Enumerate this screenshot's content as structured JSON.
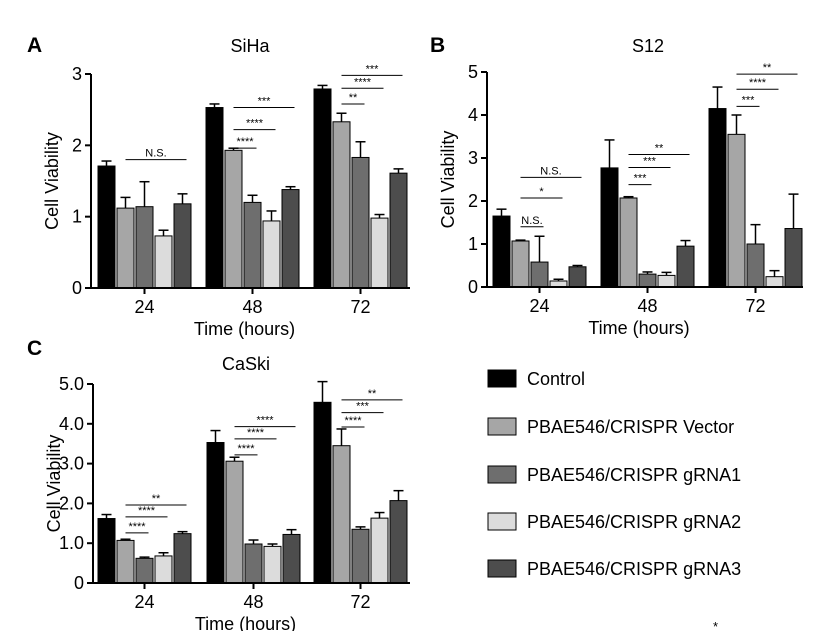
{
  "colors": {
    "series": [
      "#000000",
      "#a6a6a6",
      "#6e6e6e",
      "#dcdcdc",
      "#4d4d4d"
    ],
    "outline": "#000000"
  },
  "legend": {
    "entries": [
      "Control",
      "PBAE546/CRISPR Vector",
      "PBAE546/CRISPR gRNA1",
      "PBAE546/CRISPR gRNA2",
      "PBAE546/CRISPR gRNA3"
    ]
  },
  "footnote": "*",
  "chart_data": [
    {
      "panel_label": "A",
      "type": "bar",
      "title": "SiHa",
      "xlabel": "Time (hours)",
      "ylabel": "Cell Viability",
      "categories": [
        "24",
        "48",
        "72"
      ],
      "ylim": [
        0,
        3
      ],
      "yticks": [
        0,
        1,
        2,
        3
      ],
      "ytick_labels": [
        "0",
        "1",
        "2",
        "3"
      ],
      "series": [
        {
          "name": "Control",
          "values": [
            1.71,
            2.53,
            2.79
          ],
          "errors": [
            0.07,
            0.05,
            0.05
          ]
        },
        {
          "name": "PBAE546/CRISPR Vector",
          "values": [
            1.12,
            1.93,
            2.33
          ],
          "errors": [
            0.15,
            0.03,
            0.12
          ]
        },
        {
          "name": "PBAE546/CRISPR gRNA1",
          "values": [
            1.14,
            1.2,
            1.83
          ],
          "errors": [
            0.35,
            0.1,
            0.22
          ]
        },
        {
          "name": "PBAE546/CRISPR gRNA2",
          "values": [
            0.73,
            0.94,
            0.98
          ],
          "errors": [
            0.08,
            0.14,
            0.05
          ]
        },
        {
          "name": "PBAE546/CRISPR gRNA3",
          "values": [
            1.18,
            1.38,
            1.61
          ],
          "errors": [
            0.14,
            0.04,
            0.06
          ]
        }
      ],
      "annotations": [
        {
          "text": "N.S.",
          "category": "24",
          "series_from": 1,
          "series_to": 4,
          "y": 1.8
        },
        {
          "text": "****",
          "category": "48",
          "series_from": 1,
          "series_to": 2,
          "y": 1.96
        },
        {
          "text": "****",
          "category": "48",
          "series_from": 1,
          "series_to": 3,
          "y": 2.22
        },
        {
          "text": "***",
          "category": "48",
          "series_from": 1,
          "series_to": 4,
          "y": 2.53
        },
        {
          "text": "**",
          "category": "72",
          "series_from": 1,
          "series_to": 2,
          "y": 2.58
        },
        {
          "text": "****",
          "category": "72",
          "series_from": 1,
          "series_to": 3,
          "y": 2.8
        },
        {
          "text": "***",
          "category": "72",
          "series_from": 1,
          "series_to": 4,
          "y": 2.98
        }
      ]
    },
    {
      "panel_label": "B",
      "type": "bar",
      "title": "S12",
      "xlabel": "Time (hours)",
      "ylabel": "Cell Viability",
      "categories": [
        "24",
        "48",
        "72"
      ],
      "ylim": [
        0,
        5
      ],
      "yticks": [
        0,
        1,
        2,
        3,
        4,
        5
      ],
      "ytick_labels": [
        "0",
        "1",
        "2",
        "3",
        "4",
        "5"
      ],
      "series": [
        {
          "name": "Control",
          "values": [
            1.65,
            2.77,
            4.15
          ],
          "errors": [
            0.16,
            0.65,
            0.5
          ]
        },
        {
          "name": "PBAE546/CRISPR Vector",
          "values": [
            1.07,
            2.07,
            3.55
          ],
          "errors": [
            0.02,
            0.03,
            0.45
          ]
        },
        {
          "name": "PBAE546/CRISPR gRNA1",
          "values": [
            0.58,
            0.3,
            1.0
          ],
          "errors": [
            0.6,
            0.05,
            0.45
          ]
        },
        {
          "name": "PBAE546/CRISPR gRNA2",
          "values": [
            0.14,
            0.27,
            0.24
          ],
          "errors": [
            0.04,
            0.07,
            0.14
          ]
        },
        {
          "name": "PBAE546/CRISPR gRNA3",
          "values": [
            0.47,
            0.95,
            1.36
          ],
          "errors": [
            0.03,
            0.13,
            0.8
          ]
        }
      ],
      "annotations": [
        {
          "text": "N.S.",
          "category": "24",
          "series_from": 1,
          "series_to": 2,
          "y": 1.4
        },
        {
          "text": "*",
          "category": "24",
          "series_from": 1,
          "series_to": 3,
          "y": 2.07
        },
        {
          "text": "N.S.",
          "category": "24",
          "series_from": 1,
          "series_to": 4,
          "y": 2.55
        },
        {
          "text": "***",
          "category": "48",
          "series_from": 1,
          "series_to": 2,
          "y": 2.38
        },
        {
          "text": "***",
          "category": "48",
          "series_from": 1,
          "series_to": 3,
          "y": 2.78
        },
        {
          "text": "**",
          "category": "48",
          "series_from": 1,
          "series_to": 4,
          "y": 3.08
        },
        {
          "text": "***",
          "category": "72",
          "series_from": 1,
          "series_to": 2,
          "y": 4.2
        },
        {
          "text": "****",
          "category": "72",
          "series_from": 1,
          "series_to": 3,
          "y": 4.6
        },
        {
          "text": "**",
          "category": "72",
          "series_from": 1,
          "series_to": 4,
          "y": 4.95
        }
      ]
    },
    {
      "panel_label": "C",
      "type": "bar",
      "title": "CaSki",
      "xlabel": "Time (hours)",
      "ylabel": "Cell Viability",
      "categories": [
        "24",
        "48",
        "72"
      ],
      "ylim": [
        0,
        5
      ],
      "yticks": [
        0,
        1,
        2,
        3,
        4,
        5
      ],
      "ytick_labels": [
        "0",
        "1.0",
        "2.0",
        "3.0",
        "4.0",
        "5.0"
      ],
      "series": [
        {
          "name": "Control",
          "values": [
            1.62,
            3.53,
            4.54
          ],
          "errors": [
            0.1,
            0.3,
            0.52
          ]
        },
        {
          "name": "PBAE546/CRISPR Vector",
          "values": [
            1.07,
            3.06,
            3.45
          ],
          "errors": [
            0.03,
            0.1,
            0.42
          ]
        },
        {
          "name": "PBAE546/CRISPR gRNA1",
          "values": [
            0.62,
            0.98,
            1.35
          ],
          "errors": [
            0.03,
            0.1,
            0.06
          ]
        },
        {
          "name": "PBAE546/CRISPR gRNA2",
          "values": [
            0.68,
            0.92,
            1.63
          ],
          "errors": [
            0.08,
            0.06,
            0.14
          ]
        },
        {
          "name": "PBAE546/CRISPR gRNA3",
          "values": [
            1.24,
            1.22,
            2.07
          ],
          "errors": [
            0.05,
            0.12,
            0.25
          ]
        }
      ],
      "annotations": [
        {
          "text": "****",
          "category": "24",
          "series_from": 1,
          "series_to": 2,
          "y": 1.26
        },
        {
          "text": "****",
          "category": "24",
          "series_from": 1,
          "series_to": 3,
          "y": 1.66
        },
        {
          "text": "**",
          "category": "24",
          "series_from": 1,
          "series_to": 4,
          "y": 1.96
        },
        {
          "text": "****",
          "category": "48",
          "series_from": 1,
          "series_to": 2,
          "y": 3.22
        },
        {
          "text": "****",
          "category": "48",
          "series_from": 1,
          "series_to": 3,
          "y": 3.62
        },
        {
          "text": "****",
          "category": "48",
          "series_from": 1,
          "series_to": 4,
          "y": 3.93
        },
        {
          "text": "****",
          "category": "72",
          "series_from": 1,
          "series_to": 2,
          "y": 3.92
        },
        {
          "text": "***",
          "category": "72",
          "series_from": 1,
          "series_to": 3,
          "y": 4.28
        },
        {
          "text": "**",
          "category": "72",
          "series_from": 1,
          "series_to": 4,
          "y": 4.6
        }
      ]
    }
  ]
}
